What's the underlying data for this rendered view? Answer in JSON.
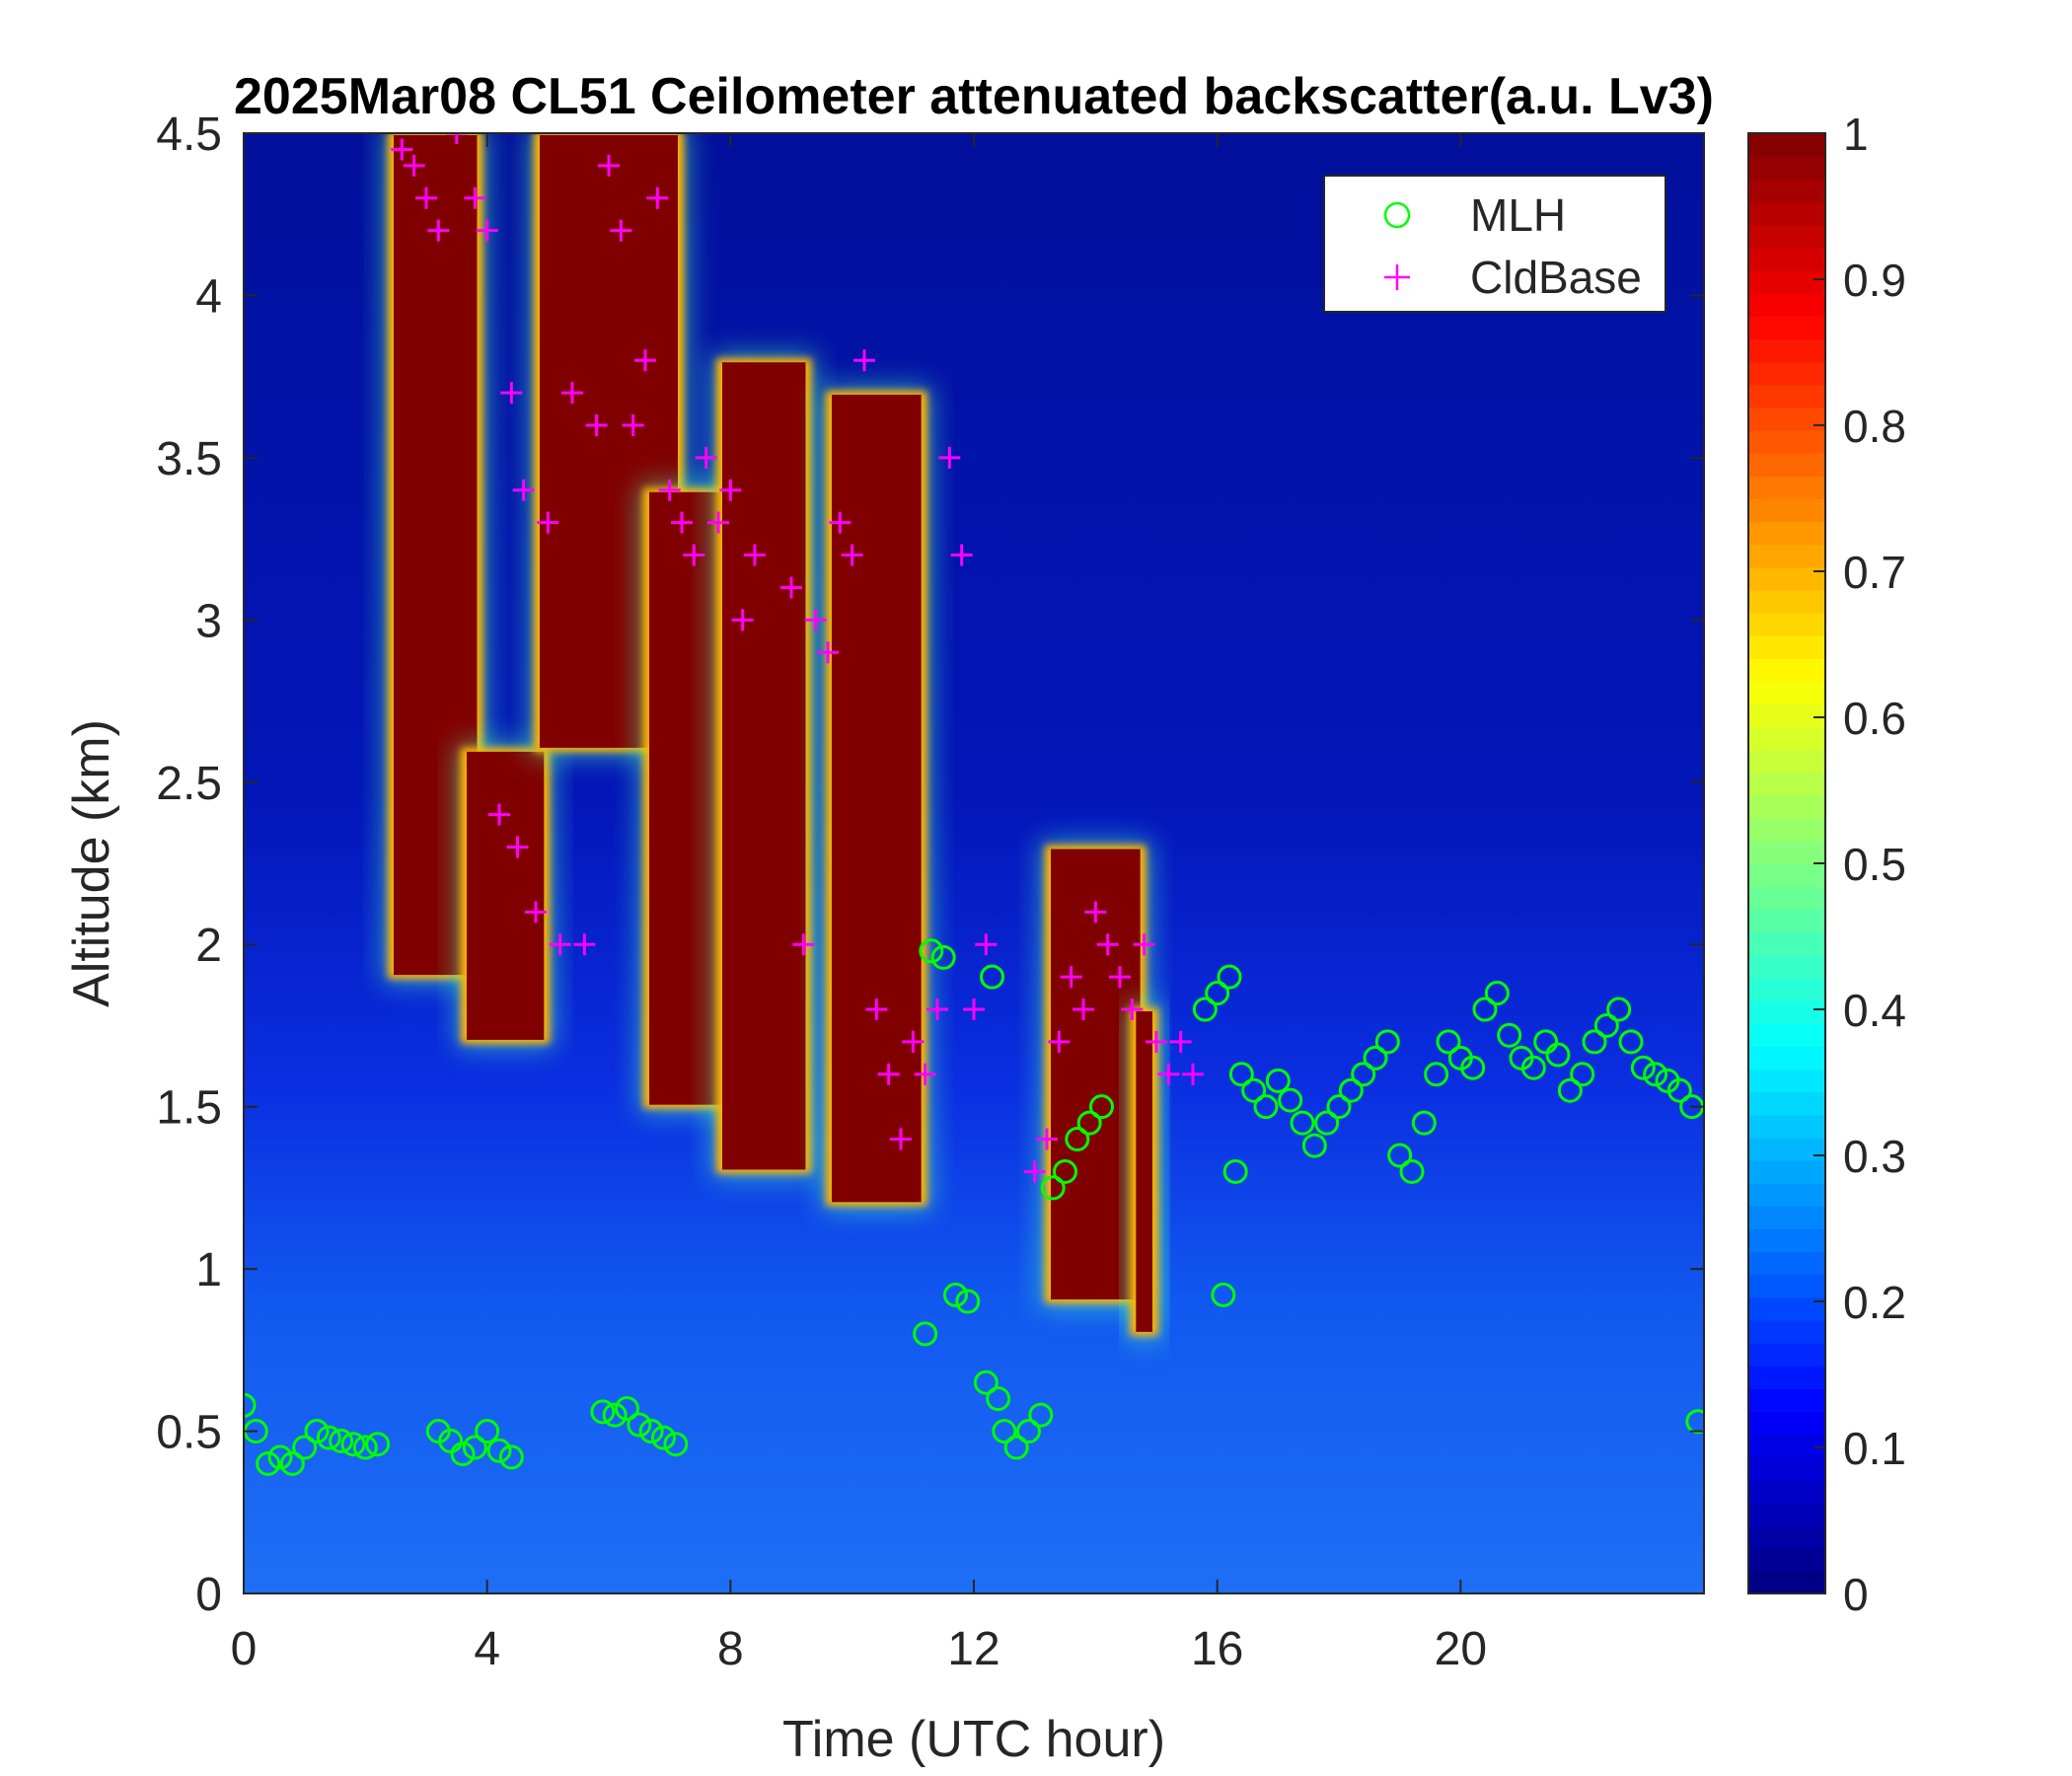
{
  "chart_data": {
    "type": "heatmap",
    "title": "2025Mar08 CL51 Ceilometer attenuated backscatter(a.u. Lv3)",
    "xlabel": "Time (UTC hour)",
    "ylabel": "Altitude (km)",
    "xlim": [
      0,
      24
    ],
    "ylim": [
      0,
      4.5
    ],
    "xticks": [
      0,
      4,
      8,
      12,
      16,
      20
    ],
    "yticks": [
      0,
      0.5,
      1,
      1.5,
      2,
      2.5,
      3,
      3.5,
      4,
      4.5
    ],
    "colorbar": {
      "colormap": "jet",
      "range": [
        0,
        1
      ],
      "ticks": [
        0,
        0.1,
        0.2,
        0.3,
        0.4,
        0.5,
        0.6,
        0.7,
        0.8,
        0.9,
        1
      ]
    },
    "legend": {
      "position": "top-right",
      "entries": [
        {
          "label": "MLH",
          "marker": "circle",
          "color": "#00ff00"
        },
        {
          "label": "CldBase",
          "marker": "plus",
          "color": "#ff00ff"
        }
      ]
    },
    "backscatter_features": [
      {
        "t": [
          2.4,
          3.9
        ],
        "z": [
          1.9,
          4.5
        ],
        "value": 1.0
      },
      {
        "t": [
          3.6,
          5.0
        ],
        "z": [
          1.7,
          2.6
        ],
        "value": 1.0
      },
      {
        "t": [
          4.8,
          7.2
        ],
        "z": [
          2.6,
          4.5
        ],
        "value": 1.0
      },
      {
        "t": [
          6.6,
          8.4
        ],
        "z": [
          1.5,
          3.4
        ],
        "value": 1.0
      },
      {
        "t": [
          7.8,
          9.3
        ],
        "z": [
          1.3,
          3.8
        ],
        "value": 1.0
      },
      {
        "t": [
          9.6,
          11.2
        ],
        "z": [
          1.2,
          3.7
        ],
        "value": 0.95
      },
      {
        "t": [
          13.2,
          14.8
        ],
        "z": [
          0.9,
          2.3
        ],
        "value": 1.0
      },
      {
        "t": [
          14.6,
          15.0
        ],
        "z": [
          0.8,
          1.8
        ],
        "value": 0.9
      }
    ],
    "series": [
      {
        "name": "MLH",
        "marker": "circle",
        "x": [
          0.0,
          0.2,
          0.4,
          0.6,
          0.8,
          1.0,
          1.2,
          1.4,
          1.6,
          1.8,
          2.0,
          2.2,
          3.2,
          3.4,
          3.6,
          3.8,
          4.0,
          4.2,
          4.4,
          5.9,
          6.1,
          6.3,
          6.5,
          6.7,
          6.9,
          7.1,
          11.2,
          11.3,
          11.5,
          11.7,
          11.9,
          12.2,
          12.3,
          12.4,
          12.5,
          12.7,
          12.9,
          13.1,
          13.3,
          13.5,
          13.7,
          13.9,
          14.1,
          15.8,
          16.0,
          16.1,
          16.2,
          16.3,
          16.4,
          16.6,
          16.8,
          17.0,
          17.2,
          17.4,
          17.6,
          17.8,
          18.0,
          18.2,
          18.4,
          18.6,
          18.8,
          19.0,
          19.2,
          19.4,
          19.6,
          19.8,
          20.0,
          20.2,
          20.4,
          20.6,
          20.8,
          21.0,
          21.2,
          21.4,
          21.6,
          21.8,
          22.0,
          22.2,
          22.4,
          22.6,
          22.8,
          23.0,
          23.2,
          23.4,
          23.6,
          23.8,
          23.9
        ],
        "y": [
          0.58,
          0.5,
          0.4,
          0.42,
          0.4,
          0.45,
          0.5,
          0.48,
          0.47,
          0.46,
          0.45,
          0.46,
          0.5,
          0.47,
          0.43,
          0.45,
          0.5,
          0.44,
          0.42,
          0.56,
          0.55,
          0.57,
          0.52,
          0.5,
          0.48,
          0.46,
          0.8,
          1.98,
          1.96,
          0.92,
          0.9,
          0.65,
          1.9,
          0.6,
          0.5,
          0.45,
          0.5,
          0.55,
          1.25,
          1.3,
          1.4,
          1.45,
          1.5,
          1.8,
          1.85,
          0.92,
          1.9,
          1.3,
          1.6,
          1.55,
          1.5,
          1.58,
          1.52,
          1.45,
          1.38,
          1.45,
          1.5,
          1.55,
          1.6,
          1.65,
          1.7,
          1.35,
          1.3,
          1.45,
          1.6,
          1.7,
          1.65,
          1.62,
          1.8,
          1.85,
          1.72,
          1.65,
          1.62,
          1.7,
          1.66,
          1.55,
          1.6,
          1.7,
          1.75,
          1.8,
          1.7,
          1.62,
          1.6,
          1.58,
          1.55,
          1.5,
          0.53
        ]
      },
      {
        "name": "CldBase",
        "marker": "plus",
        "x": [
          2.6,
          2.8,
          3.0,
          3.2,
          3.5,
          3.8,
          4.0,
          4.2,
          4.4,
          4.5,
          4.6,
          4.8,
          5.0,
          5.2,
          5.4,
          5.6,
          5.8,
          6.0,
          6.2,
          6.4,
          6.6,
          6.8,
          7.0,
          7.2,
          7.4,
          7.6,
          7.8,
          8.0,
          8.2,
          8.4,
          9.0,
          9.2,
          9.4,
          9.6,
          9.8,
          10.0,
          10.2,
          10.4,
          10.6,
          10.8,
          11.0,
          11.2,
          11.4,
          11.6,
          11.8,
          12.0,
          12.2,
          13.0,
          13.2,
          13.4,
          13.6,
          13.8,
          14.0,
          14.2,
          14.4,
          14.6,
          14.8,
          15.0,
          15.2,
          15.4,
          15.6
        ],
        "y": [
          4.45,
          4.4,
          4.3,
          4.2,
          4.5,
          4.3,
          4.2,
          2.4,
          3.7,
          2.3,
          3.4,
          2.1,
          3.3,
          2.0,
          3.7,
          2.0,
          3.6,
          4.4,
          4.2,
          3.6,
          3.8,
          4.3,
          3.4,
          3.3,
          3.2,
          3.5,
          3.3,
          3.4,
          3.0,
          3.2,
          3.1,
          2.0,
          3.0,
          2.9,
          3.3,
          3.2,
          3.8,
          1.8,
          1.6,
          1.4,
          1.7,
          1.6,
          1.8,
          3.5,
          3.2,
          1.8,
          2.0,
          1.3,
          1.4,
          1.7,
          1.9,
          1.8,
          2.1,
          2.0,
          1.9,
          1.8,
          2.0,
          1.7,
          1.6,
          1.7,
          1.6
        ]
      }
    ]
  }
}
